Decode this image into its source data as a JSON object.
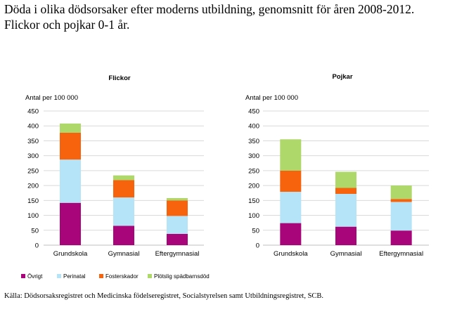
{
  "heading": {
    "line1": "Döda i olika dödsorsaker efter moderns utbildning, genomsnitt för åren 2008-2012.",
    "line2": "Flickor och pojkar 0-1 år."
  },
  "source": "Källa: Dödsorsaksregistret och Medicinska födelseregistret, Socialstyrelsen samt Utbildningsregistret, SCB.",
  "colors": {
    "Övrigt": "#a8057a",
    "Perinatal": "#b5e3f7",
    "Fosterskador": "#f7620c",
    "Plötslig spädbarnsdöd": "#aed86a"
  },
  "chart_data": [
    {
      "type": "bar",
      "stacked": true,
      "title": "Flickor",
      "ylabel": "Antal per 100 000",
      "ylim": [
        0,
        450
      ],
      "yticks": [
        0,
        50,
        100,
        150,
        200,
        250,
        300,
        350,
        400,
        450
      ],
      "categories": [
        "Grundskola",
        "Gymnasial",
        "Eftergymnasial"
      ],
      "series": [
        {
          "name": "Övrigt",
          "values": [
            142,
            65,
            38
          ]
        },
        {
          "name": "Perinatal",
          "values": [
            145,
            95,
            60
          ]
        },
        {
          "name": "Fosterskador",
          "values": [
            90,
            58,
            52
          ]
        },
        {
          "name": "Plötslig spädbarnsdöd",
          "values": [
            31,
            16,
            8
          ]
        }
      ]
    },
    {
      "type": "bar",
      "stacked": true,
      "title": "Pojkar",
      "ylabel": "Antal per 100 000",
      "ylim": [
        0,
        450
      ],
      "yticks": [
        0,
        50,
        100,
        150,
        200,
        250,
        300,
        350,
        400,
        450
      ],
      "categories": [
        "Grundskola",
        "Gymnasial",
        "Eftergymnasial"
      ],
      "series": [
        {
          "name": "Övrigt",
          "values": [
            74,
            62,
            49
          ]
        },
        {
          "name": "Perinatal",
          "values": [
            105,
            110,
            96
          ]
        },
        {
          "name": "Fosterskador",
          "values": [
            71,
            20,
            10
          ]
        },
        {
          "name": "Plötslig spädbarnsdöd",
          "values": [
            105,
            54,
            45
          ]
        }
      ]
    }
  ],
  "legend": {
    "position": "bottom-left",
    "items": [
      "Övrigt",
      "Perinatal",
      "Fosterskador",
      "Plötslig spädbarnsdöd"
    ]
  }
}
